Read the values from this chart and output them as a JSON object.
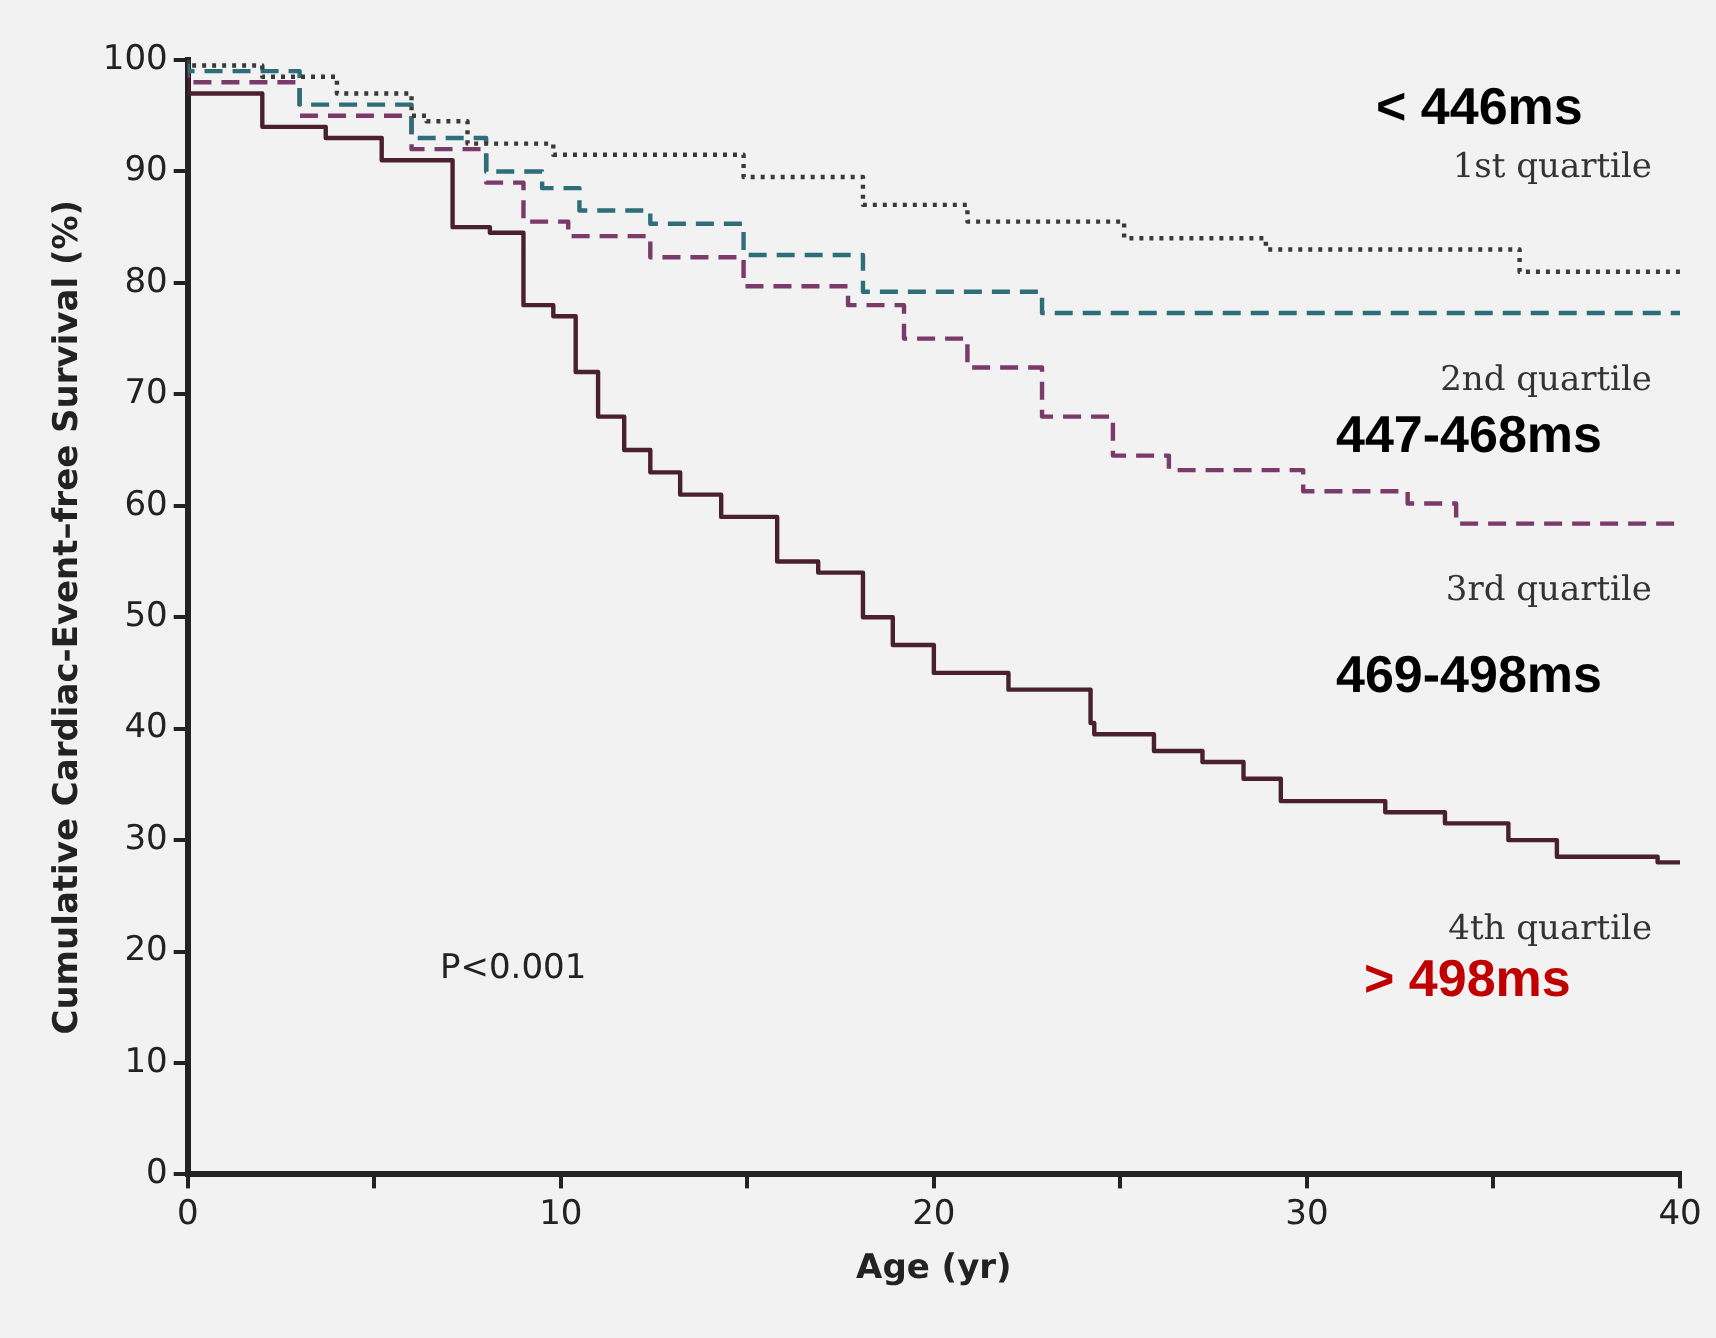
{
  "chart_data": {
    "type": "step",
    "xlabel": "Age (yr)",
    "ylabel": "Cumulative Cardiac-Event–free Survival (%)",
    "xlim": [
      0,
      40
    ],
    "xticks": [
      0,
      {
        "value": 5,
        "label": null
      },
      10,
      {
        "value": 15,
        "label": null
      },
      20,
      {
        "value": 25,
        "label": null
      },
      30,
      {
        "value": 35,
        "label": null
      },
      40
    ],
    "ylim": [
      0,
      100
    ],
    "yticks": [
      0,
      10,
      20,
      30,
      40,
      50,
      60,
      70,
      80,
      90,
      100
    ],
    "grid": false,
    "legend": false,
    "marker": "none",
    "annotations": [
      "< 446ms",
      "447-468ms",
      "469-498ms",
      "> 498ms",
      "P<0.001"
    ],
    "series": [
      {
        "name": "1st quartile",
        "color": "#3a3a3a",
        "line_style": "dotted",
        "x": [
          0,
          2,
          4,
          6,
          6.4,
          7.5,
          9.8,
          14.9,
          18.1,
          20.9,
          25.1,
          28.9,
          35.7,
          38.2,
          40
        ],
        "values": [
          100,
          99.5,
          98.5,
          97,
          95,
          94.5,
          92.5,
          91.5,
          89.5,
          87,
          85.5,
          84,
          83,
          81,
          81
        ]
      },
      {
        "name": "2nd quartile",
        "color": "#2e6e78",
        "line_style": "dashed",
        "x": [
          0,
          3,
          6,
          8,
          9.5,
          10.5,
          12.4,
          14.9,
          18.1,
          22.9,
          26.1,
          40
        ],
        "values": [
          100,
          99,
          96,
          93,
          90,
          88.5,
          86.5,
          85.3,
          82.5,
          79.2,
          77.3,
          77.3
        ]
      },
      {
        "name": "3rd quartile",
        "color": "#7a3a6a",
        "line_style": "dashed",
        "x": [
          0,
          3,
          6,
          8,
          9,
          10.2,
          12.4,
          14.9,
          17.7,
          19.2,
          20.9,
          22.9,
          24.8,
          26.3,
          29.9,
          32.7,
          34,
          39.4,
          40
        ],
        "values": [
          100,
          98,
          95,
          92,
          89,
          85.5,
          84.2,
          82.3,
          79.7,
          78,
          75,
          72.4,
          68,
          64.5,
          63.2,
          61.3,
          60.2,
          58.4,
          58.4
        ]
      },
      {
        "name": "4th quartile",
        "color": "#4a2030",
        "line_style": "solid",
        "x": [
          0,
          2,
          3.7,
          5.2,
          7.1,
          8.1,
          9,
          9.8,
          10.4,
          11,
          11.7,
          12.4,
          13.2,
          14.3,
          15.8,
          16.9,
          18.1,
          18.9,
          20,
          22,
          24.2,
          24.3,
          25.9,
          27.2,
          28.3,
          29.3,
          32.1,
          33.7,
          35.4,
          36.7,
          39.4,
          40
        ],
        "values": [
          100,
          97,
          94,
          93,
          91,
          85,
          84.5,
          78,
          77,
          72,
          68,
          65,
          63,
          61,
          59,
          55,
          54,
          50,
          47.5,
          45,
          43.5,
          40.5,
          39.5,
          38,
          37,
          35.5,
          33.5,
          32.5,
          31.5,
          30,
          28.5,
          28
        ]
      }
    ]
  }
}
